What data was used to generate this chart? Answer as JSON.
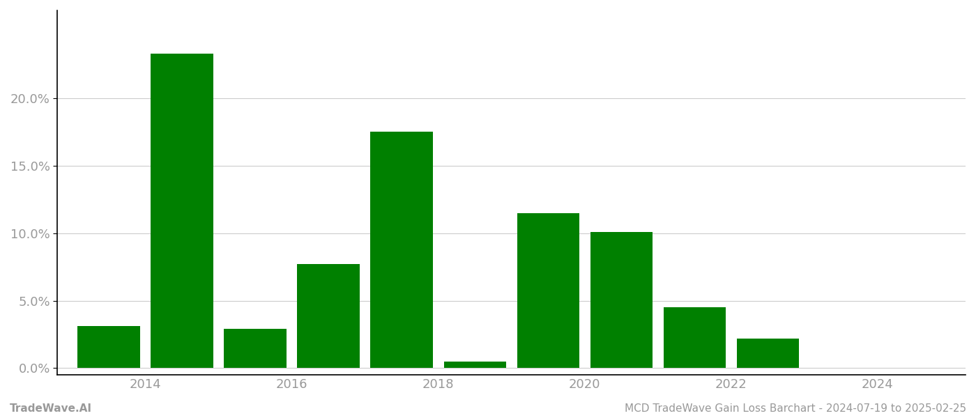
{
  "bar_positions": [
    2013.5,
    2014.5,
    2015.5,
    2016.5,
    2017.5,
    2018.5,
    2019.5,
    2020.5,
    2021.5,
    2022.5,
    2023.5
  ],
  "values": [
    0.031,
    0.233,
    0.029,
    0.077,
    0.175,
    0.005,
    0.115,
    0.101,
    0.045,
    0.022,
    0.0
  ],
  "bar_color": "#008000",
  "background_color": "#ffffff",
  "grid_color": "#cccccc",
  "left_spine_color": "#000000",
  "bottom_spine_color": "#000000",
  "tick_label_color": "#999999",
  "ylabel_ticks": [
    0.0,
    0.05,
    0.1,
    0.15,
    0.2
  ],
  "ylim": [
    -0.005,
    0.265
  ],
  "xlim": [
    2012.8,
    2025.2
  ],
  "xticks": [
    2014,
    2016,
    2018,
    2020,
    2022,
    2024
  ],
  "footer_left": "TradeWave.AI",
  "footer_right": "MCD TradeWave Gain Loss Barchart - 2024-07-19 to 2025-02-25",
  "footer_color": "#999999",
  "footer_fontsize": 11,
  "tick_fontsize": 13,
  "bar_width": 0.85
}
